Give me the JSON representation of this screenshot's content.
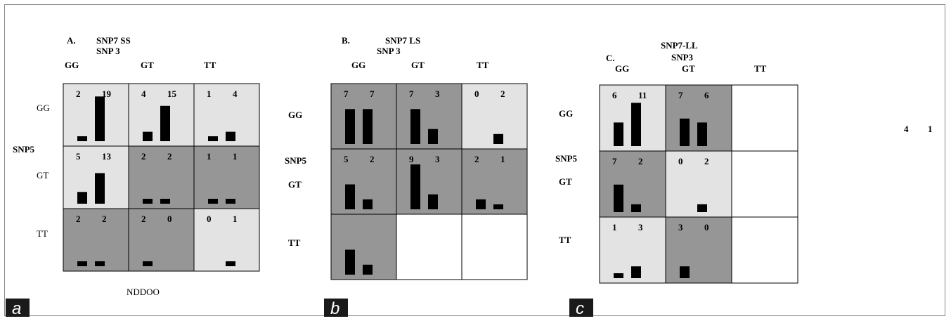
{
  "stray_text": {
    "right_a": "4",
    "right_b": "1",
    "under_a": "NDDOO"
  },
  "colors": {
    "dark": "#969696",
    "light": "#e3e3e3",
    "white": "#ffffff",
    "bar": "#000000",
    "tag_bg": "#1a1a1a"
  },
  "chart_data": [
    {
      "type": "bar",
      "panel_tag": "a",
      "title_lines": [
        "A.",
        "SNP7 SS",
        "SNP 3"
      ],
      "col_labels": [
        "GG",
        "GT",
        "TT"
      ],
      "row_labels": [
        "GG",
        "GT",
        "TT"
      ],
      "row_axis_label": "SNP5",
      "grid": true,
      "cells": [
        [
          {
            "shade": "light",
            "values": [
              2,
              19
            ],
            "labels": [
              "2",
              "19"
            ]
          },
          {
            "shade": "light",
            "values": [
              4,
              15
            ],
            "labels": [
              "4",
              "15"
            ]
          },
          {
            "shade": "light",
            "values": [
              1,
              4
            ],
            "labels": [
              "1",
              "4"
            ]
          }
        ],
        [
          {
            "shade": "light",
            "values": [
              5,
              13
            ],
            "labels": [
              "5",
              "13"
            ]
          },
          {
            "shade": "dark",
            "values": [
              2,
              2
            ],
            "labels": [
              "2",
              "2"
            ]
          },
          {
            "shade": "dark",
            "values": [
              1,
              1
            ],
            "labels": [
              "1",
              "1"
            ]
          }
        ],
        [
          {
            "shade": "dark",
            "values": [
              2,
              2
            ],
            "labels": [
              "2",
              "2"
            ]
          },
          {
            "shade": "dark",
            "values": [
              2,
              0
            ],
            "labels": [
              "2",
              "0"
            ]
          },
          {
            "shade": "light",
            "values": [
              0,
              1
            ],
            "labels": [
              "0",
              "1"
            ]
          }
        ]
      ]
    },
    {
      "type": "bar",
      "panel_tag": "b",
      "title_lines": [
        "B.",
        "SNP7 LS",
        "SNP 3"
      ],
      "col_labels": [
        "GG",
        "GT",
        "TT"
      ],
      "row_labels": [
        "GG",
        "GT",
        "TT"
      ],
      "row_axis_label": "SNP5",
      "grid": true,
      "cells": [
        [
          {
            "shade": "dark",
            "values": [
              7,
              7
            ],
            "labels": [
              "7",
              "7"
            ]
          },
          {
            "shade": "dark",
            "values": [
              7,
              3
            ],
            "labels": [
              "7",
              "3"
            ]
          },
          {
            "shade": "light",
            "values": [
              0,
              2
            ],
            "labels": [
              "0",
              "2"
            ]
          }
        ],
        [
          {
            "shade": "dark",
            "values": [
              5,
              2
            ],
            "labels": [
              "5",
              "2"
            ]
          },
          {
            "shade": "dark",
            "values": [
              9,
              3
            ],
            "labels": [
              "9",
              "3"
            ]
          },
          {
            "shade": "dark",
            "values": [
              2,
              1
            ],
            "labels": [
              "2",
              "1"
            ]
          }
        ],
        [
          {
            "shade": "dark",
            "values": [
              5,
              2
            ],
            "labels": [
              "",
              ""
            ]
          },
          {
            "shade": "white",
            "values": [],
            "labels": []
          },
          {
            "shade": "white",
            "values": [],
            "labels": []
          }
        ]
      ]
    },
    {
      "type": "bar",
      "panel_tag": "c",
      "title_lines": [
        "C.",
        "SNP7-LL",
        "SNP3"
      ],
      "col_labels": [
        "GG",
        "GT",
        "TT"
      ],
      "row_labels": [
        "GG",
        "GT",
        "TT"
      ],
      "row_axis_label": "SNP5",
      "grid": true,
      "cells": [
        [
          {
            "shade": "light",
            "values": [
              6,
              11
            ],
            "labels": [
              "6",
              "11"
            ]
          },
          {
            "shade": "dark",
            "values": [
              7,
              6
            ],
            "labels": [
              "7",
              "6"
            ]
          },
          {
            "shade": "white",
            "values": [],
            "labels": []
          }
        ],
        [
          {
            "shade": "dark",
            "values": [
              7,
              2
            ],
            "labels": [
              "7",
              "2"
            ]
          },
          {
            "shade": "light",
            "values": [
              0,
              2
            ],
            "labels": [
              "0",
              "2"
            ]
          },
          {
            "shade": "white",
            "values": [],
            "labels": []
          }
        ],
        [
          {
            "shade": "light",
            "values": [
              1,
              3
            ],
            "labels": [
              "1",
              "3"
            ]
          },
          {
            "shade": "dark",
            "values": [
              3,
              0
            ],
            "labels": [
              "3",
              "0"
            ]
          },
          {
            "shade": "white",
            "values": [],
            "labels": []
          }
        ]
      ]
    }
  ]
}
